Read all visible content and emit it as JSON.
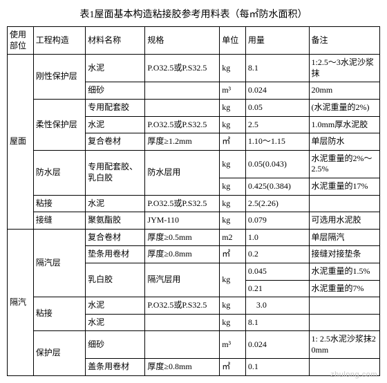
{
  "title": "表1屋面基本构造粘接胶参考用料表（每㎡防水面积）",
  "headers": [
    "使用部位",
    "工程构造",
    "材料名称",
    "规格",
    "单位",
    "用量",
    "备注"
  ],
  "rows": [
    {
      "c1": "屋面",
      "c2": "刚性保护层",
      "c3": "水泥",
      "c4": "P.O32.5或P.S32.5",
      "c5": "kg",
      "c6": "8.1",
      "c7": "1:2.5～3水泥沙浆抹"
    },
    {
      "c3": "细砂",
      "c5": "m³",
      "c6": "0.024",
      "c7": "20mm"
    },
    {
      "c2": "柔性保护层",
      "c3": "专用配套胶",
      "c5": "kg",
      "c6": "0.05",
      "c7": "(水泥重量的2%)"
    },
    {
      "c3": "水泥",
      "c4": "P.O32.5或P.S32.5",
      "c5": "kg",
      "c6": "2.5",
      "c7": "1.0mm厚水泥胶"
    },
    {
      "c3": "复合卷材",
      "c4": "厚度≥1.2mm",
      "c5": "㎡",
      "c6": "1.10～1.15",
      "c7": "单层防水"
    },
    {
      "c2": "防水层",
      "c3": "专用配套胶、乳白胶",
      "c4": "防水层用",
      "c5": "kg",
      "c6": "0.05(0.043)",
      "c7": "水泥重量的2%～2.5%"
    },
    {
      "c5": "kg",
      "c6": "0.425(0.384)",
      "c7": "水泥重量的17%"
    },
    {
      "c2": "粘接",
      "c3": "水泥",
      "c4": "P.O32.5或P.S32.5",
      "c5": "kg",
      "c6": "2.5(2.26)"
    },
    {
      "c2": "接缝",
      "c3": "聚氨酯胶",
      "c4": "JYM-110",
      "c5": "kg",
      "c6": "0.079",
      "c7": "可选用水泥胶"
    },
    {
      "c1": "隔汽",
      "c2": "隔汽层",
      "c3": "复合卷材",
      "c4": "厚度≥0.5mm",
      "c5": "m2",
      "c6": "1.0",
      "c7": "单层隔汽"
    },
    {
      "c3": "垫条用卷材",
      "c4": "厚度≥0.8mm",
      "c5": "㎡",
      "c6": "0.2",
      "c7": "接缝对接垫条"
    },
    {
      "c3": "乳白胶",
      "c4": "隔汽层用",
      "c5": "kg",
      "c6": "0.045",
      "c7": "水泥重量的1.5%"
    },
    {
      "c6": "0.21",
      "c7": "水泥重量的7%"
    },
    {
      "c2": "粘接",
      "c3": "水泥",
      "c4": "P.O32.5或P.S32.5",
      "c5": "kg",
      "c6": "　3.0"
    },
    {
      "c3": "水泥",
      "c5": "kg",
      "c6": "8.1"
    },
    {
      "c2": "保护层",
      "c3": "细砂",
      "c5": "m³",
      "c6": "0.024",
      "c7": "1: 2.5水泥沙浆抹20mm"
    },
    {
      "c3": "盖条用卷材",
      "c4": "厚度≥0.8mm",
      "c5": "㎡",
      "c6": "0.1"
    }
  ],
  "watermark": "zhulong.com"
}
